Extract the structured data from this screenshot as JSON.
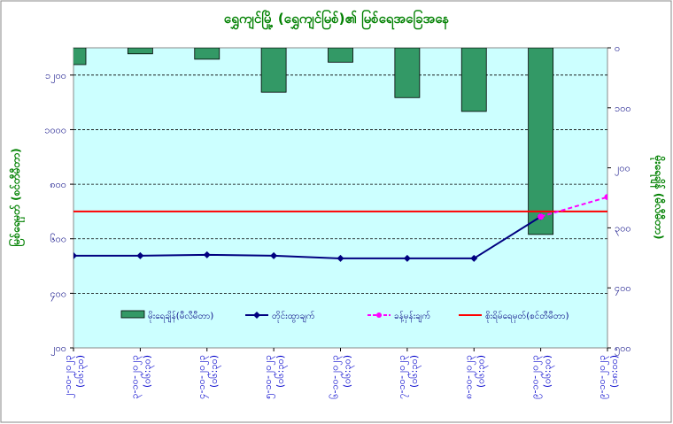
{
  "chart_data": {
    "type": "combo",
    "title": "ရွှေကျင်မြို့ (ရွှေကျင်မြစ်)၏ မြစ်ရေအခြေအနေ",
    "ylabel": "မြစ်ရေမှတ် (စင်တီမီတာ)",
    "y2label": "မိုးရေချိန် (မီလီမီတာ)",
    "categories": [
      "၂-၁၀-၂၀၂၃",
      "၃-၁၀-၂၀၂၃",
      "၄-၁၀-၂၀၂၃",
      "၅-၁၀-၂၀၂၃",
      "၆-၁၀-၂၀၂၃",
      "၇-၁၀-၂၀၂၃",
      "၈-၁၀-၂၀၂၃",
      "၉-၁၀-၂၀၂၃",
      "၉-၁၀-၂၀၂၃"
    ],
    "category_times": [
      "(၀၆:၃၀)",
      "(၀၆:၃၀)",
      "(၀၆:၃၀)",
      "(၀၆:၃၀)",
      "(၀၆:၃၀)",
      "(၀၆:၃၀)",
      "(၀၆:၃၀)",
      "(၀၆:၃၀)",
      "(၁၈:၀၀)"
    ],
    "ylim": [
      200,
      1300
    ],
    "yticks": [
      {
        "value": 200,
        "label": "၂၀၀"
      },
      {
        "value": 400,
        "label": "၄၀၀"
      },
      {
        "value": 600,
        "label": "၆၀၀"
      },
      {
        "value": 800,
        "label": "၈၀၀"
      },
      {
        "value": 1000,
        "label": "၁၀၀၀"
      },
      {
        "value": 1200,
        "label": "၁၂၀၀"
      }
    ],
    "y2lim": [
      0,
      500
    ],
    "y2_inverted": true,
    "y2ticks": [
      {
        "value": 0,
        "label": "၀"
      },
      {
        "value": 100,
        "label": "၁၀၀"
      },
      {
        "value": 200,
        "label": "၂၀၀"
      },
      {
        "value": 300,
        "label": "၃၀၀"
      },
      {
        "value": 400,
        "label": "၄၀၀"
      },
      {
        "value": 500,
        "label": "၅၀၀"
      }
    ],
    "grid": true,
    "series": [
      {
        "name": "မိုးရေချိန်(မီလီမီတာ)",
        "type": "bar",
        "axis": "y2",
        "color": "#339966",
        "values": [
          28,
          10,
          19,
          74,
          24,
          83,
          106,
          311,
          null
        ]
      },
      {
        "name": "တိုင်းထွာချက်",
        "type": "line",
        "color": "#000080",
        "values": [
          538,
          538,
          541,
          538,
          528,
          528,
          528,
          681,
          null
        ]
      },
      {
        "name": "ခန့်မှန်းချက်",
        "type": "forecast",
        "color": "#ff00ff",
        "values": [
          null,
          null,
          null,
          null,
          null,
          null,
          null,
          681,
          753
        ]
      },
      {
        "name": "စိုးရိမ်ရေမှတ်(စင်တီမီတာ)",
        "type": "level",
        "color": "#ff0000",
        "values": [
          700,
          700,
          700,
          700,
          700,
          700,
          700,
          700,
          700
        ]
      }
    ]
  }
}
